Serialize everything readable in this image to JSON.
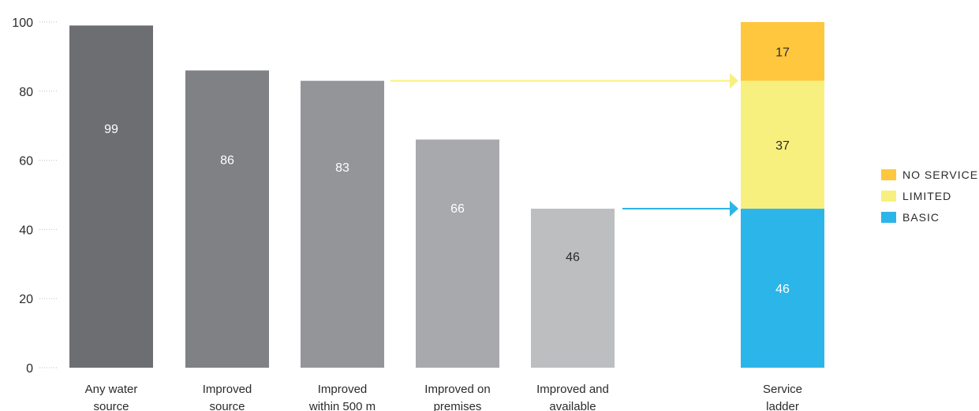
{
  "chart_data": {
    "type": "bar",
    "ylim": [
      0,
      100
    ],
    "yticks": [
      0,
      20,
      40,
      60,
      80,
      100
    ],
    "categories": [
      [
        "Any water",
        "source"
      ],
      [
        "Improved",
        "source"
      ],
      [
        "Improved",
        "within 500 m"
      ],
      [
        "Improved on",
        "premises"
      ],
      [
        "Improved and",
        "available"
      ]
    ],
    "values": [
      99,
      86,
      83,
      66,
      46
    ],
    "bar_colors": [
      "#6d6e71",
      "#808184",
      "#939598",
      "#a7a9ac",
      "#bcbec0"
    ],
    "value_label_colors": [
      "#ffffff",
      "#ffffff",
      "#ffffff",
      "#ffffff",
      "#2b2b2b"
    ],
    "stacked_bar": {
      "label": [
        "Service",
        "ladder"
      ],
      "segments": [
        {
          "name": "BASIC",
          "value": 46,
          "color": "#2cb5e8",
          "label_color": "#ffffff"
        },
        {
          "name": "LIMITED",
          "value": 37,
          "color": "#f8f07e",
          "label_color": "#2b2b2b"
        },
        {
          "name": "NO SERVICE",
          "value": 17,
          "color": "#fec73d",
          "label_color": "#2b2b2b"
        }
      ]
    },
    "arrows": [
      {
        "from_value": 83,
        "color": "#f8f07e",
        "meaning": "to top of LIMITED"
      },
      {
        "from_value": 46,
        "color": "#2cb5e8",
        "meaning": "to top of BASIC"
      }
    ],
    "legend": {
      "placement": "right",
      "items": [
        {
          "label": "NO SERVICE",
          "color": "#fec73d"
        },
        {
          "label": "LIMITED",
          "color": "#f8f07e"
        },
        {
          "label": "BASIC",
          "color": "#2cb5e8"
        }
      ]
    },
    "grid": false
  }
}
